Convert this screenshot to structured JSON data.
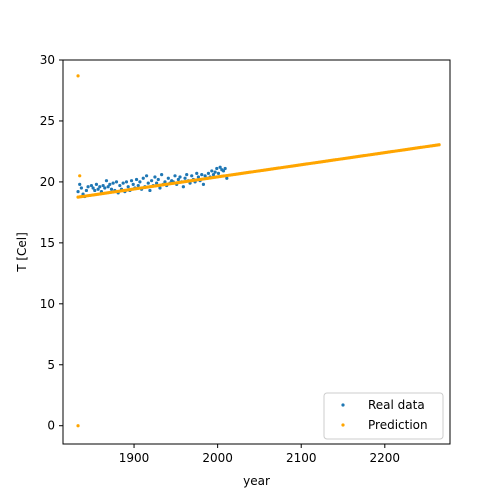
{
  "chart_data": {
    "type": "scatter",
    "title": "",
    "xlabel": "year",
    "ylabel": "T [Cel]",
    "xlim": [
      1815,
      2278
    ],
    "ylim": [
      -1.5,
      30.0
    ],
    "x_ticks": [
      1900,
      2000,
      2100,
      2200
    ],
    "y_ticks": [
      0,
      5,
      10,
      15,
      20,
      25,
      30
    ],
    "grid": false,
    "legend_position": "lower-right",
    "series": [
      {
        "name": "Real data",
        "color": "#1f77b4",
        "x": [
          1833,
          1835,
          1837,
          1839,
          1841,
          1843,
          1845,
          1849,
          1851,
          1853,
          1855,
          1857,
          1859,
          1861,
          1863,
          1865,
          1867,
          1869,
          1871,
          1873,
          1875,
          1877,
          1879,
          1881,
          1883,
          1885,
          1887,
          1889,
          1891,
          1893,
          1895,
          1897,
          1899,
          1901,
          1903,
          1905,
          1907,
          1909,
          1911,
          1913,
          1915,
          1917,
          1919,
          1921,
          1923,
          1925,
          1927,
          1929,
          1931,
          1933,
          1935,
          1937,
          1939,
          1941,
          1943,
          1945,
          1947,
          1949,
          1951,
          1953,
          1955,
          1957,
          1959,
          1961,
          1963,
          1965,
          1967,
          1969,
          1971,
          1973,
          1975,
          1977,
          1979,
          1981,
          1983,
          1985,
          1987,
          1989,
          1991,
          1993,
          1995,
          1997,
          1999,
          2001,
          2003,
          2005,
          2007,
          2009,
          2011
        ],
        "y": [
          19.2,
          19.8,
          19.5,
          19.0,
          18.8,
          19.3,
          19.6,
          19.7,
          19.5,
          19.3,
          19.8,
          19.4,
          19.6,
          19.2,
          19.7,
          19.5,
          20.1,
          19.6,
          19.8,
          19.4,
          19.9,
          19.3,
          20.0,
          19.1,
          19.7,
          19.4,
          19.9,
          19.2,
          20.0,
          19.6,
          19.3,
          20.1,
          19.8,
          19.5,
          20.2,
          19.7,
          20.0,
          19.4,
          20.3,
          19.6,
          20.5,
          19.9,
          19.3,
          20.1,
          19.7,
          20.4,
          19.9,
          20.2,
          19.5,
          20.6,
          19.8,
          20.0,
          19.7,
          20.3,
          19.9,
          20.1,
          20.0,
          20.5,
          19.8,
          20.2,
          20.4,
          20.0,
          19.6,
          20.3,
          20.6,
          20.1,
          19.9,
          20.5,
          20.2,
          20.0,
          20.7,
          20.4,
          20.1,
          20.6,
          19.8,
          20.5,
          20.3,
          20.7,
          20.4,
          20.9,
          20.6,
          20.8,
          21.1,
          20.7,
          21.2,
          21.0,
          20.9,
          21.1,
          20.3
        ]
      },
      {
        "name": "Prediction",
        "color": "#ffa500",
        "x_start": 1833,
        "x_end": 2265,
        "x_step": 2,
        "y_start": 18.75,
        "y_slope": 0.00995,
        "outliers": [
          {
            "x": 1833,
            "y": 28.7
          },
          {
            "x": 1833,
            "y": 0.0
          },
          {
            "x": 1835,
            "y": 20.5
          }
        ]
      }
    ]
  }
}
